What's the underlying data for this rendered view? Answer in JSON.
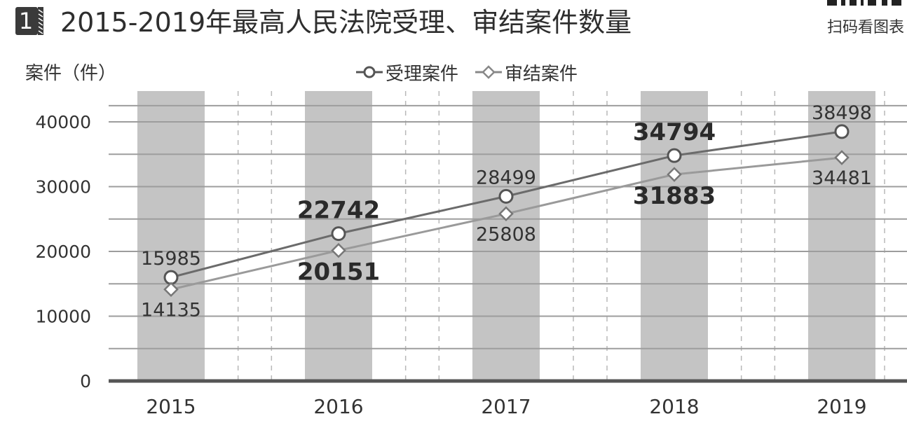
{
  "header": {
    "badge": "1",
    "title": "2015-2019年最高人民法院受理、审结案件数量",
    "scan_text": "扫码看图表"
  },
  "chart_data": {
    "type": "line",
    "title": "2015-2019年最高人民法院受理、审结案件数量",
    "xlabel": "",
    "ylabel": "案件（件）",
    "categories": [
      "2015",
      "2016",
      "2017",
      "2018",
      "2019"
    ],
    "ylim": [
      0,
      40000
    ],
    "yticks": [
      "0",
      "10000",
      "20000",
      "30000",
      "40000"
    ],
    "grid": true,
    "legend_position": "top-center",
    "series": [
      {
        "name": "受理案件",
        "marker": "circle",
        "color": "#6b6b6b",
        "values": [
          15985,
          22742,
          28499,
          34794,
          38498
        ]
      },
      {
        "name": "审结案件",
        "marker": "diamond",
        "color": "#9a9a9a",
        "values": [
          14135,
          20151,
          25808,
          31883,
          34481
        ]
      }
    ],
    "data_labels": {
      "受理案件": [
        "15985",
        "22742",
        "28499",
        "34794",
        "38498"
      ],
      "审结案件": [
        "14135",
        "20151",
        "25808",
        "31883",
        "34481"
      ]
    },
    "emphasized_labels": [
      "22742",
      "20151",
      "34794",
      "31883"
    ],
    "background_bands": [
      "2015",
      "2016",
      "2017",
      "2018",
      "2019"
    ]
  }
}
